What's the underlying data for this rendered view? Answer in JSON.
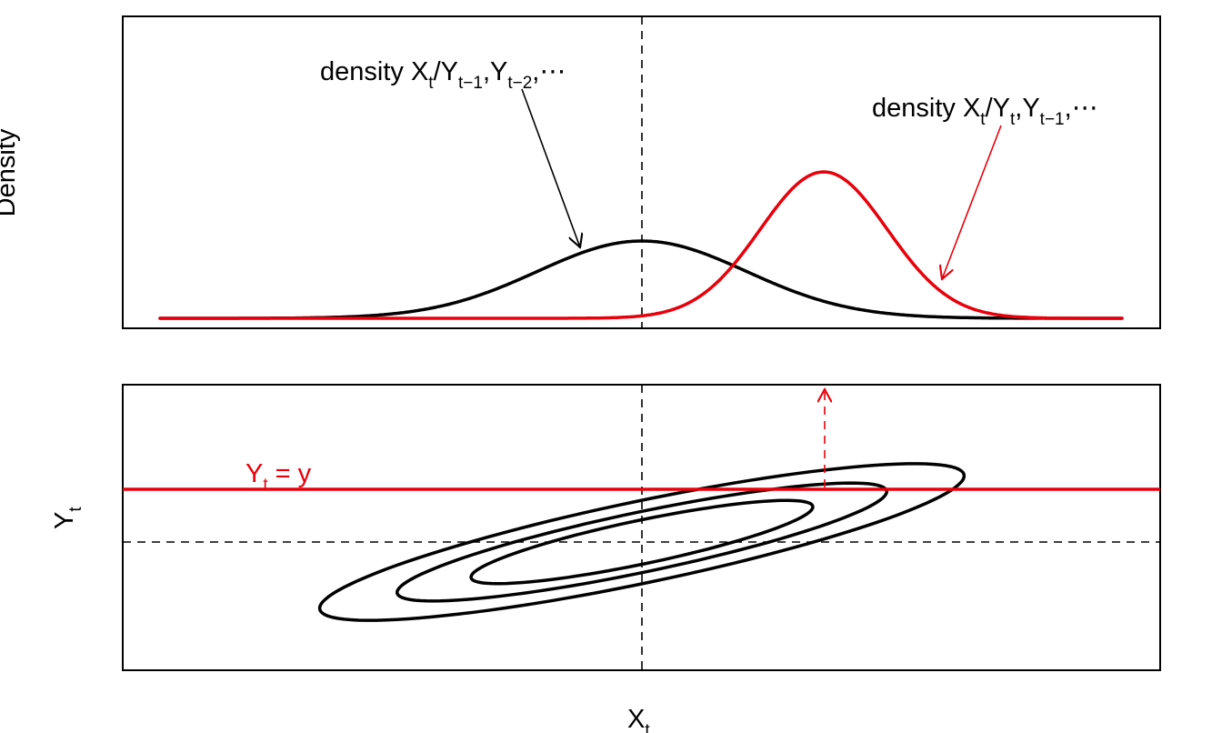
{
  "colors": {
    "black": "#000000",
    "red": "#e8000b"
  },
  "top_panel": {
    "ylabel": "Density",
    "prior_label": {
      "base": "density X",
      "s1": "t",
      "mid1": "/Y",
      "s2": "t−1",
      "mid2": ",Y",
      "s3": "t−2",
      "tail": ",⋯"
    },
    "posterior_label": {
      "base": "density X",
      "s1": "t",
      "mid1": "/Y",
      "s2": "t",
      "mid2": ",Y",
      "s3": "t−1",
      "tail": ",⋯"
    }
  },
  "bottom_panel": {
    "xlabel": {
      "base": "X",
      "sub": "t"
    },
    "ylabel": {
      "base": "Y",
      "sub": "t"
    },
    "condition_label": {
      "base": "Y",
      "sub": "t",
      "tail": " = y"
    }
  }
}
